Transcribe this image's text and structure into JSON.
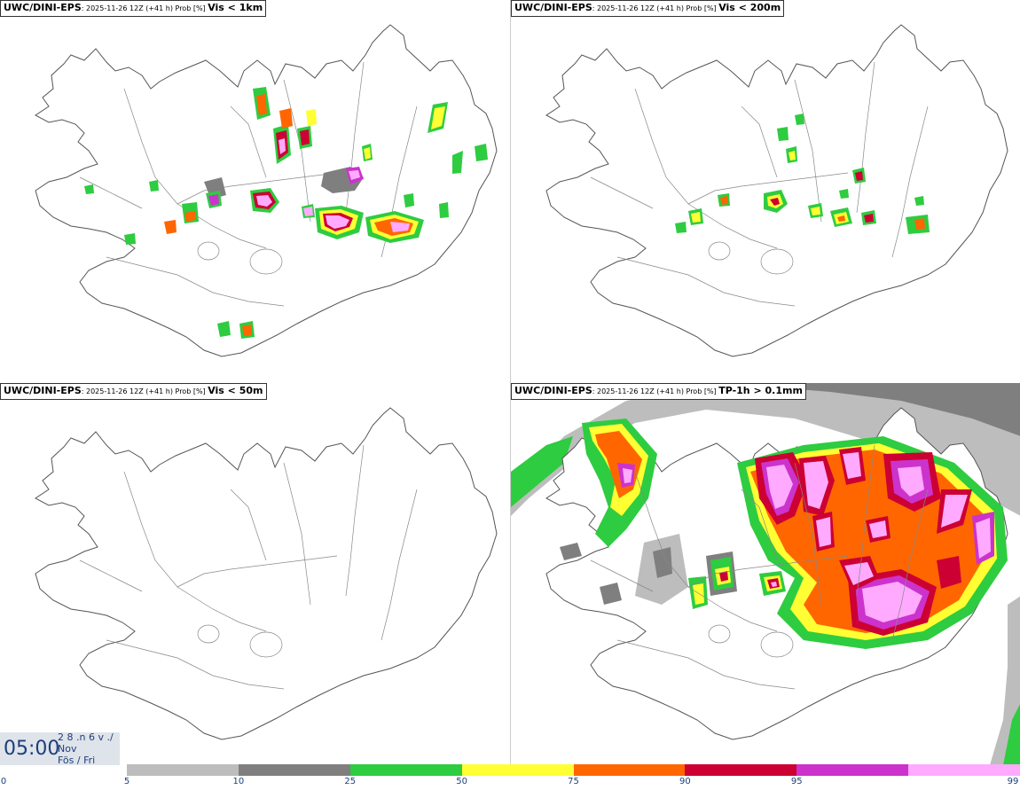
{
  "panels": [
    {
      "model": "UWC/DINI-EPS",
      "meta": ": 2025-11-26 12Z (+41 h) Prob [%] ",
      "variable": "Vis < 1km"
    },
    {
      "model": "UWC/DINI-EPS",
      "meta": ": 2025-11-26 12Z (+41 h) Prob [%] ",
      "variable": "Vis < 200m"
    },
    {
      "model": "UWC/DINI-EPS",
      "meta": ": 2025-11-26 12Z (+41 h) Prob [%] ",
      "variable": "Vis < 50m"
    },
    {
      "model": "UWC/DINI-EPS",
      "meta": ": 2025-11-26 12Z (+41 h) Prob [%] ",
      "variable": "TP-1h > 0.1mm"
    }
  ],
  "valid_time": {
    "time": "05:00",
    "line1": "2 8 .n 6 v ./",
    "line2": "Nov",
    "line3": "Fös / Fri"
  },
  "legend": {
    "ticks": [
      "0",
      "5",
      "10",
      "25",
      "50",
      "75",
      "90",
      "95",
      "99"
    ],
    "colors": [
      "#bdbdbd",
      "#7f7f7f",
      "#2ecc40",
      "#ffff33",
      "#ff6600",
      "#cc0033",
      "#cc33cc",
      "#ffaaff"
    ]
  },
  "palette": {
    "grey_light": "#bdbdbd",
    "grey_dark": "#7f7f7f",
    "green": "#2ecc40",
    "yellow": "#ffff33",
    "orange": "#ff6600",
    "red": "#cc0033",
    "magenta": "#cc33cc",
    "pink": "#ffaaff"
  }
}
